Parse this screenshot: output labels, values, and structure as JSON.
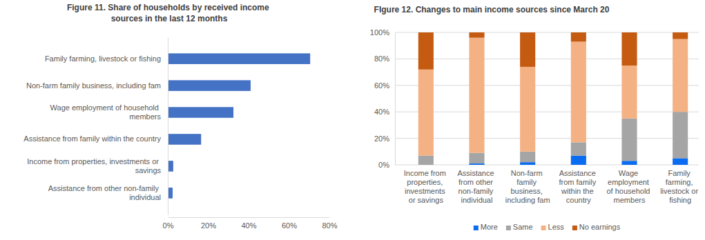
{
  "chart_data": [
    {
      "type": "bar",
      "orientation": "horizontal",
      "title": "Figure 11. Share of households by received income sources in the last 12 months",
      "categories": [
        "Family farming, livestock or fishing",
        "Non-farm family business, including fam",
        "Wage employment of household members",
        "Assistance from family within the country",
        "Income from properties, investments or savings",
        "Assistance from other non-family individual"
      ],
      "values": [
        70.5,
        41,
        32.5,
        16.5,
        2.7,
        2.4
      ],
      "color": "#4472c4",
      "xlim": [
        0,
        80
      ],
      "xticks": [
        {
          "value": 0,
          "label": "0%"
        },
        {
          "value": 20,
          "label": "20%"
        },
        {
          "value": 40,
          "label": "40%"
        },
        {
          "value": 60,
          "label": "60%"
        },
        {
          "value": 80,
          "label": "80%"
        }
      ],
      "grid": false
    },
    {
      "type": "bar",
      "stacked": true,
      "title": "FIgure 12. Changes to main income sources since March 20",
      "categories": [
        "Income from properties, investments or savings",
        "Assistance from other non-family individual",
        "Non-farm family business, including fam",
        "Assistance from family within the country",
        "Wage employment of household members",
        "Family farming, livestock or fishing"
      ],
      "series": [
        {
          "name": "More",
          "color": "#0a6cf0",
          "values": [
            0,
            1,
            2,
            7,
            3,
            5
          ]
        },
        {
          "name": "Same",
          "color": "#a5a5a5",
          "values": [
            7,
            8,
            8,
            10,
            32,
            35
          ]
        },
        {
          "name": "Less",
          "color": "#f4b183",
          "values": [
            65,
            87,
            64,
            76,
            40,
            55
          ]
        },
        {
          "name": "No earnings",
          "color": "#c55a11",
          "values": [
            28,
            4,
            26,
            7,
            25,
            5
          ]
        }
      ],
      "ylim": [
        0,
        100
      ],
      "yticks": [
        {
          "value": 0,
          "label": "0%"
        },
        {
          "value": 20,
          "label": "20%"
        },
        {
          "value": 40,
          "label": "40%"
        },
        {
          "value": 60,
          "label": "60%"
        },
        {
          "value": 80,
          "label": "80%"
        },
        {
          "value": 100,
          "label": "100%"
        }
      ],
      "grid": true,
      "legend": "bottom"
    }
  ]
}
